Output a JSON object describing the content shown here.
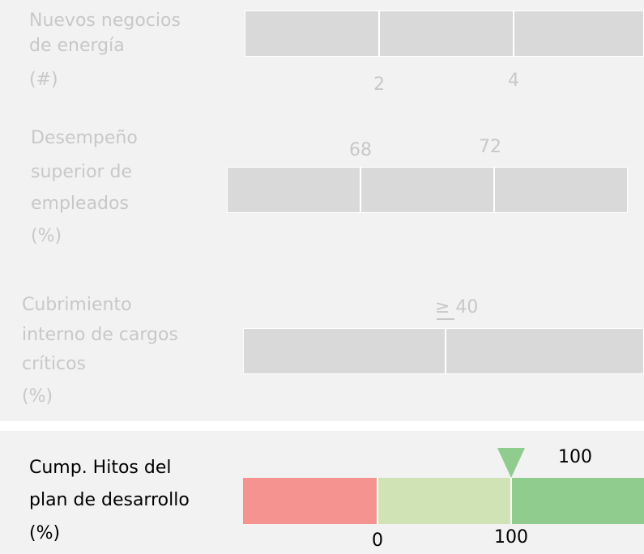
{
  "rows": [
    {
      "label": [
        "Nuevos negocios",
        "de energía",
        "(#)"
      ],
      "thresholds": [
        "2",
        "4"
      ]
    },
    {
      "label": [
        "Desempeño",
        "superior de",
        "empleados",
        "(%)"
      ],
      "thresholds": [
        "68",
        "72"
      ]
    },
    {
      "label": [
        "Cubrimiento",
        "interno de cargos",
        "críticos",
        "(%)"
      ],
      "thresholds": [
        "≥ 40"
      ]
    }
  ],
  "active": {
    "label": [
      "Cump. Hitos del",
      "plan de desarrollo",
      "(%)"
    ],
    "thresholds": [
      "0",
      "100"
    ],
    "marker": "100"
  }
}
